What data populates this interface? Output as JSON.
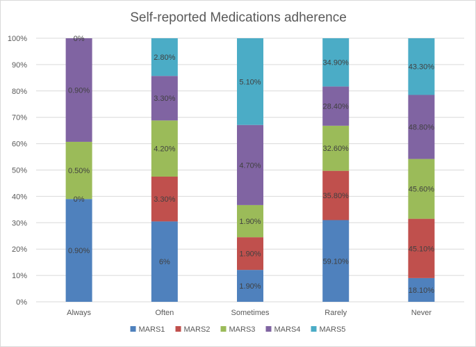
{
  "chart_data": {
    "type": "bar",
    "stacked": true,
    "percent_stacked": true,
    "title": "Self-reported Medications adherence",
    "xlabel": "",
    "ylabel": "",
    "ylim": [
      0,
      100
    ],
    "y_ticks": [
      "0%",
      "10%",
      "20%",
      "30%",
      "40%",
      "50%",
      "60%",
      "70%",
      "80%",
      "90%",
      "100%"
    ],
    "categories": [
      "Always",
      "Often",
      "Sometimes",
      "Rarely",
      "Never"
    ],
    "legend_position": "bottom",
    "series": [
      {
        "name": "MARS1",
        "color": "#4f81bd",
        "shares": [
          39,
          30.5,
          12.1,
          31,
          9
        ],
        "labels": [
          "0.90%",
          "6%",
          "1.90%",
          "59.10%",
          "18.10%"
        ]
      },
      {
        "name": "MARS2",
        "color": "#c0504d",
        "shares": [
          0,
          17,
          12.4,
          18.7,
          22.5
        ],
        "labels": [
          "0%",
          "3.30%",
          "1.90%",
          "35.80%",
          "45.10%"
        ]
      },
      {
        "name": "MARS3",
        "color": "#9bbb59",
        "shares": [
          21.7,
          21.3,
          12.2,
          17.1,
          22.7
        ],
        "labels": [
          "0.50%",
          "4.20%",
          "1.90%",
          "32.60%",
          "45.60%"
        ]
      },
      {
        "name": "MARS4",
        "color": "#8064a2",
        "shares": [
          39.3,
          16.9,
          30.4,
          14.9,
          24.3
        ],
        "labels": [
          "0.90%",
          "3.30%",
          "4.70%",
          "28.40%",
          "48.80%"
        ]
      },
      {
        "name": "MARS5",
        "color": "#4bacc6",
        "shares": [
          0,
          14.3,
          32.9,
          18.3,
          21.5
        ],
        "labels": [
          "0%",
          "2.80%",
          "5.10%",
          "34.90%",
          "43.30%"
        ]
      }
    ]
  }
}
